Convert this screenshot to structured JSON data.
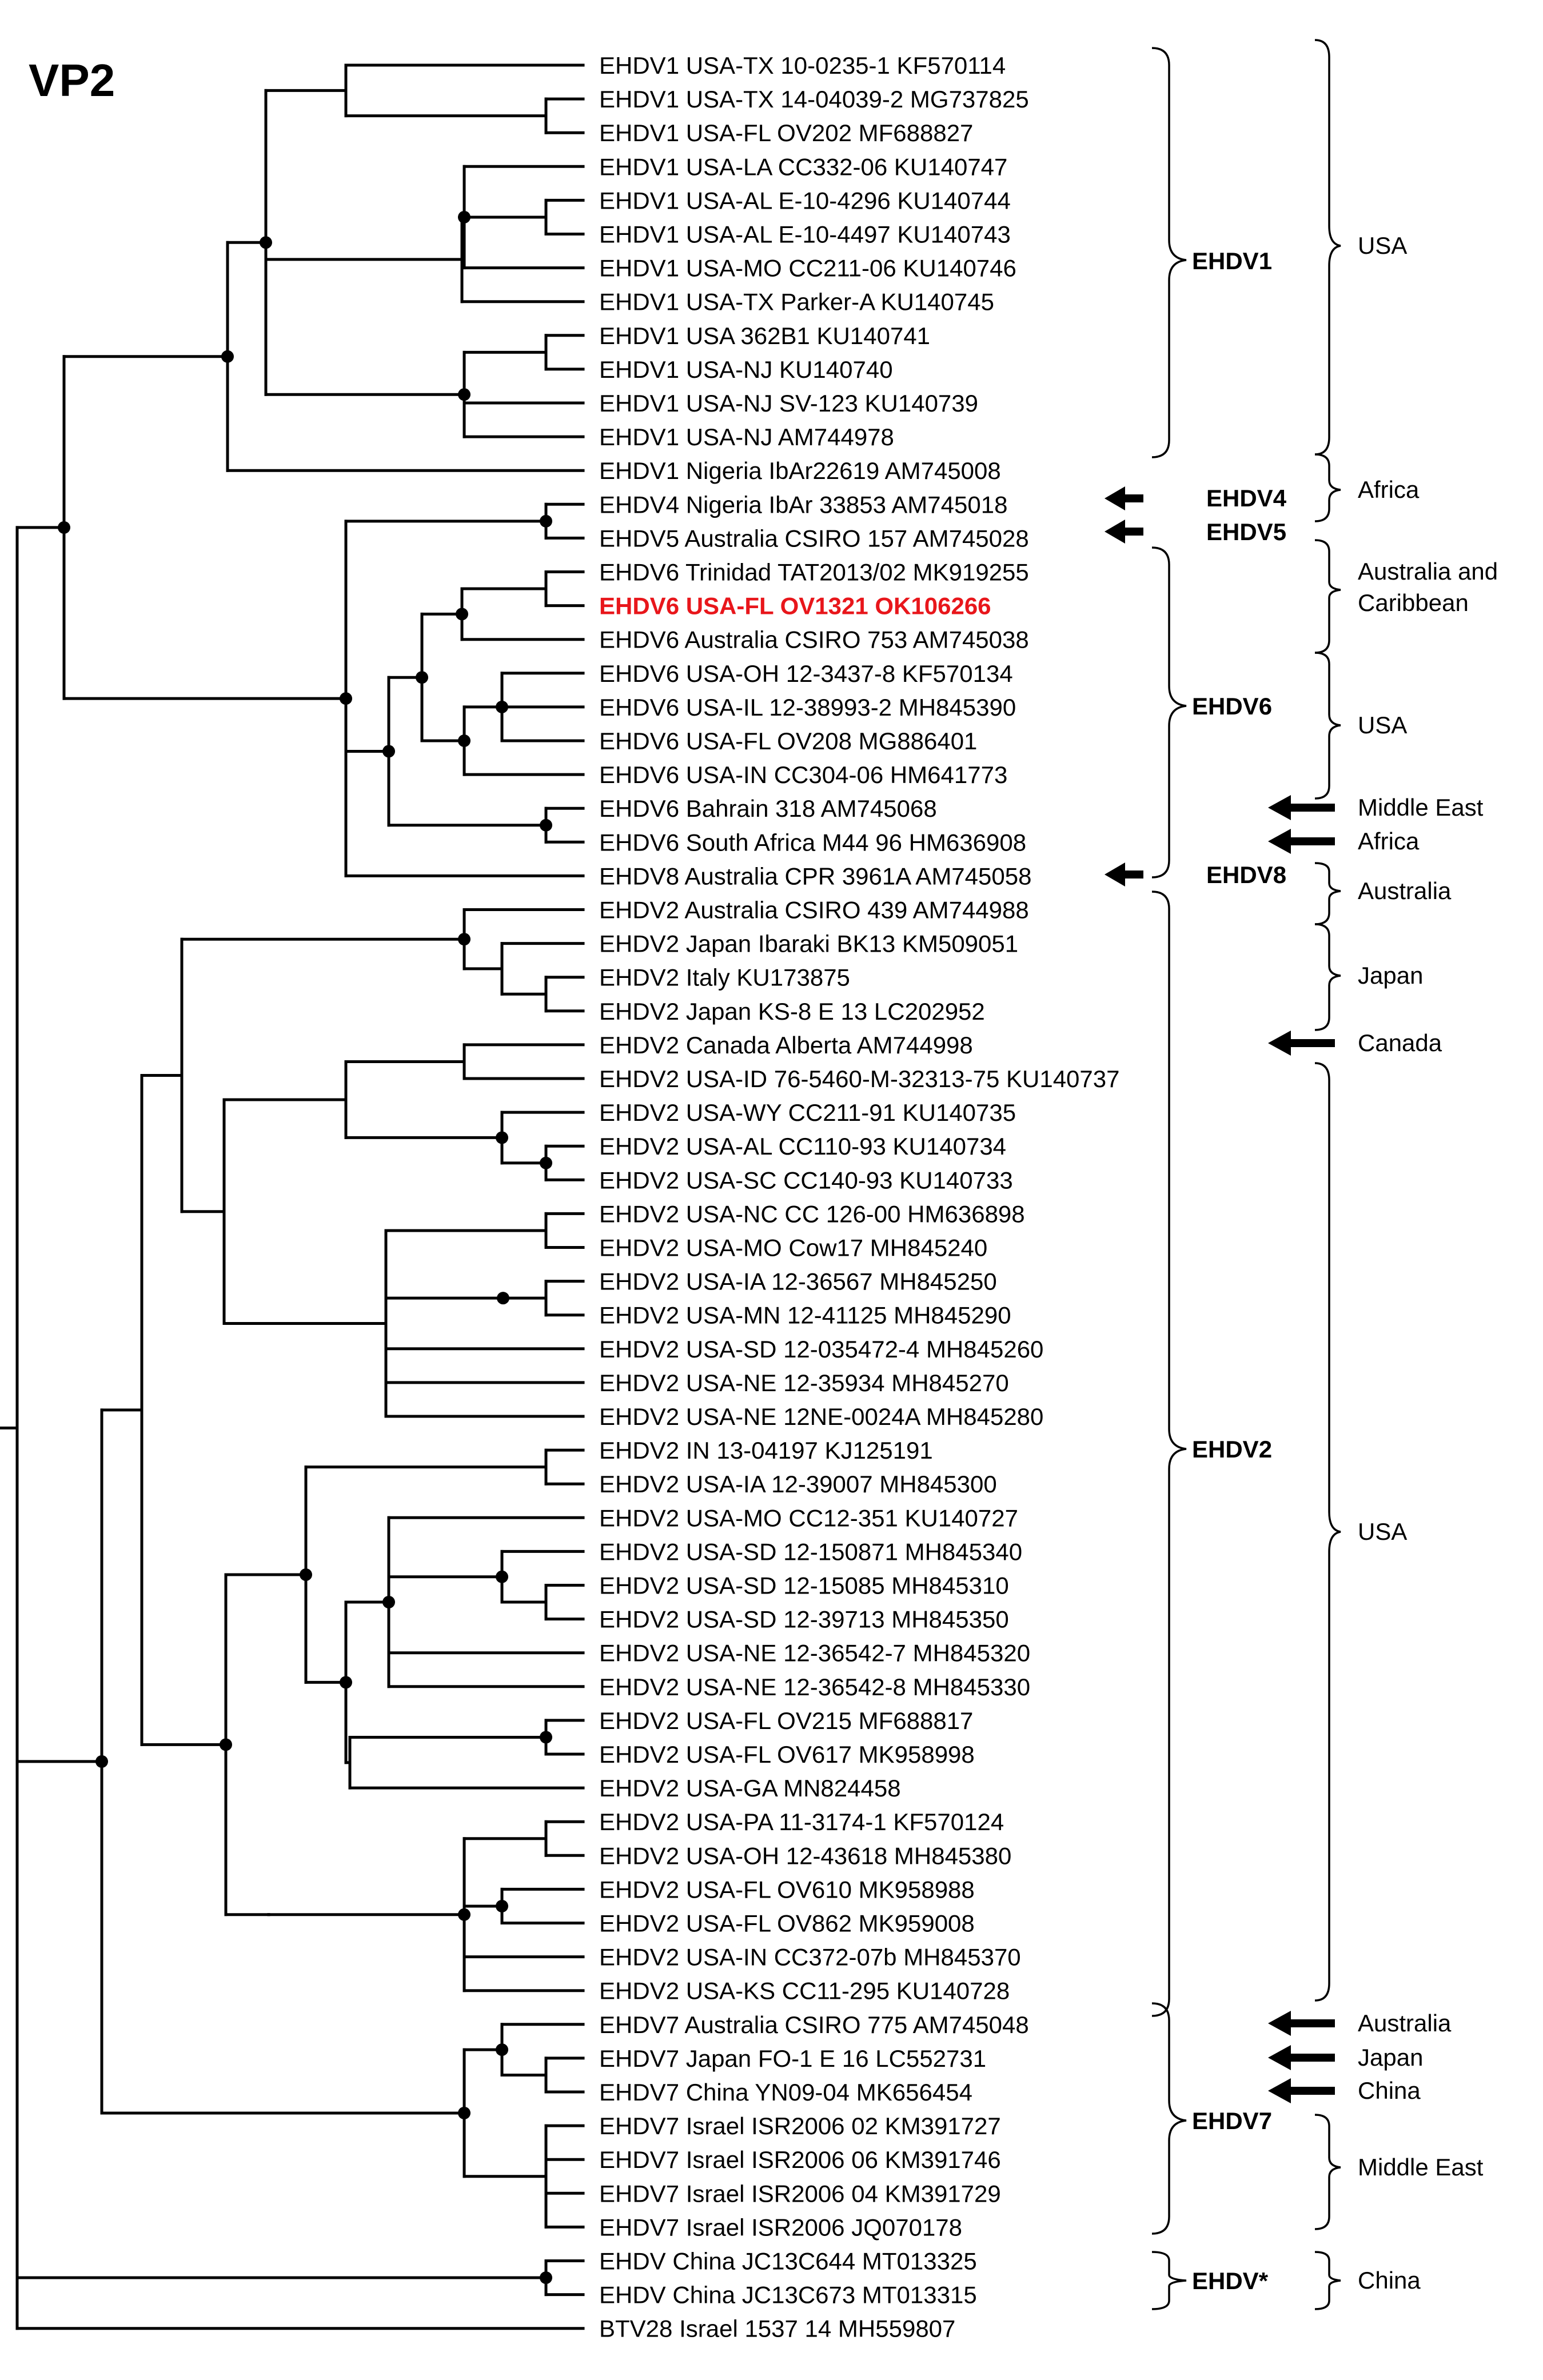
{
  "figure": {
    "title": "VP2",
    "highlight_color": "#e8161b",
    "leaves": [
      "EHDV1 USA-TX 10-0235-1 KF570114",
      "EHDV1 USA-TX 14-04039-2 MG737825",
      "EHDV1 USA-FL OV202 MF688827",
      "EHDV1 USA-LA CC332-06 KU140747",
      "EHDV1 USA-AL E-10-4296 KU140744",
      "EHDV1 USA-AL E-10-4497 KU140743",
      "EHDV1 USA-MO CC211-06 KU140746",
      "EHDV1 USA-TX Parker-A KU140745",
      "EHDV1 USA 362B1 KU140741",
      "EHDV1 USA-NJ KU140740",
      "EHDV1 USA-NJ SV-123 KU140739",
      "EHDV1 USA-NJ AM744978",
      "EHDV1 Nigeria IbAr22619 AM745008",
      "EHDV4 Nigeria IbAr 33853 AM745018",
      "EHDV5 Australia CSIRO 157 AM745028",
      "EHDV6 Trinidad TAT2013/02 MK919255",
      "EHDV6 USA-FL OV1321 OK106266",
      "EHDV6 Australia CSIRO 753 AM745038",
      "EHDV6 USA-OH 12-3437-8 KF570134",
      "EHDV6 USA-IL 12-38993-2 MH845390",
      "EHDV6 USA-FL OV208 MG886401",
      "EHDV6 USA-IN CC304-06 HM641773",
      "EHDV6 Bahrain 318 AM745068",
      "EHDV6 South Africa M44 96 HM636908",
      "EHDV8 Australia CPR 3961A AM745058",
      "EHDV2 Australia CSIRO 439 AM744988",
      "EHDV2 Japan Ibaraki BK13 KM509051",
      "EHDV2 Italy KU173875",
      "EHDV2 Japan KS-8 E 13 LC202952",
      "EHDV2 Canada Alberta AM744998",
      "EHDV2 USA-ID 76-5460-M-32313-75 KU140737",
      "EHDV2 USA-WY CC211-91 KU140735",
      "EHDV2 USA-AL CC110-93 KU140734",
      "EHDV2 USA-SC CC140-93 KU140733",
      "EHDV2 USA-NC CC 126-00 HM636898",
      "EHDV2 USA-MO Cow17 MH845240",
      "EHDV2 USA-IA 12-36567 MH845250",
      "EHDV2 USA-MN 12-41125 MH845290",
      "EHDV2 USA-SD 12-035472-4 MH845260",
      "EHDV2 USA-NE 12-35934 MH845270",
      "EHDV2 USA-NE 12NE-0024A MH845280",
      "EHDV2 IN 13-04197 KJ125191",
      "EHDV2 USA-IA 12-39007 MH845300",
      "EHDV2 USA-MO CC12-351 KU140727",
      "EHDV2 USA-SD 12-150871 MH845340",
      "EHDV2 USA-SD 12-15085 MH845310",
      "EHDV2 USA-SD 12-39713 MH845350",
      "EHDV2 USA-NE 12-36542-7 MH845320",
      "EHDV2 USA-NE 12-36542-8 MH845330",
      "EHDV2 USA-FL OV215 MF688817",
      "EHDV2 USA-FL OV617 MK958998",
      "EHDV2 USA-GA MN824458",
      "EHDV2 USA-PA 11-3174-1 KF570124",
      "EHDV2 USA-OH 12-43618 MH845380",
      "EHDV2 USA-FL OV610 MK958988",
      "EHDV2 USA-FL OV862 MK959008",
      "EHDV2 USA-IN CC372-07b MH845370",
      "EHDV2 USA-KS CC11-295 KU140728",
      "EHDV7 Australia CSIRO 775 AM745048",
      "EHDV7 Japan FO-1 E 16 LC552731",
      "EHDV7 China YN09-04 MK656454",
      "EHDV7 Israel ISR2006 02 KM391727",
      "EHDV7 Israel ISR2006 06 KM391746",
      "EHDV7 Israel ISR2006 04 KM391729",
      "EHDV7 Israel ISR2006 JQ070178",
      "EHDV China JC13C644 MT013325",
      "EHDV China JC13C673 MT013315",
      "BTV28 Israel 1537 14 MH559807"
    ],
    "highlighted_leaf": 16,
    "serotypes": [
      "EHDV1",
      "EHDV4",
      "EHDV5",
      "EHDV6",
      "EHDV8",
      "EHDV2",
      "EHDV7",
      "EHDV*"
    ],
    "regions": [
      "USA",
      "Africa",
      "Australia and",
      "Caribbean",
      "USA",
      "Middle East",
      "Africa",
      "Australia",
      "Japan",
      "Canada",
      "USA",
      "Australia",
      "Japan",
      "China",
      "Middle East",
      "China"
    ]
  }
}
